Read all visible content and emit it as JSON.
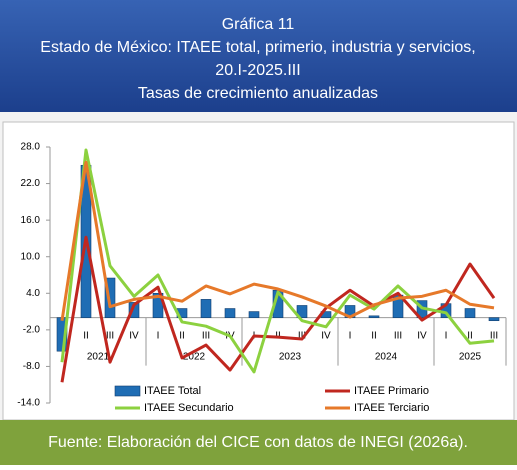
{
  "chart_data": {
    "type": "bar-line",
    "title": [
      "Gráfica 11",
      "Estado de México: ITAEE total, primerio, industria y servicios,",
      "20.I-2025.III",
      "Tasas de crecimiento anualizadas"
    ],
    "source": "Fuente: Elaboración del CICE con datos de INEGI (2026a).",
    "categories": [
      "I",
      "II",
      "III",
      "IV",
      "I",
      "II",
      "III",
      "IV",
      "I",
      "II",
      "III",
      "IV",
      "I",
      "II",
      "III",
      "IV",
      "I",
      "II",
      "III"
    ],
    "groups": [
      {
        "name": "2021",
        "count": 4
      },
      {
        "name": "2022",
        "count": 4
      },
      {
        "name": "2023",
        "count": 4
      },
      {
        "name": "2024",
        "count": 4
      },
      {
        "name": "2025",
        "count": 3
      }
    ],
    "series": [
      {
        "name": "ITAEE Total",
        "type": "bar",
        "color": "#1f6db4",
        "values": [
          -5.5,
          25,
          6.5,
          2.5,
          4.0,
          1.5,
          3.0,
          1.5,
          1.0,
          4.5,
          2.0,
          1.0,
          2.0,
          0.3,
          3.7,
          2.8,
          2.3,
          1.5,
          -0.5
        ]
      },
      {
        "name": "ITAEE Primario",
        "type": "line",
        "color": "#c0271f",
        "values": [
          -10.6,
          13.2,
          -7.3,
          2.1,
          5.0,
          -6.6,
          -4.5,
          -8.6,
          -3.0,
          -3.2,
          -3.5,
          1.6,
          4.5,
          1.9,
          4.0,
          -0.4,
          2.1,
          8.8,
          3.2
        ]
      },
      {
        "name": "ITAEE Secundario",
        "type": "line",
        "color": "#8cd13f",
        "values": [
          -7.3,
          27.5,
          8.5,
          3.5,
          7.0,
          -0.7,
          -1.4,
          -3.0,
          -8.9,
          4.2,
          -0.5,
          -1.5,
          3.7,
          1.4,
          5.2,
          1.6,
          0.8,
          -4.2,
          -3.8
        ]
      },
      {
        "name": "ITAEE Terciario",
        "type": "line",
        "color": "#e6792a",
        "values": [
          -0.5,
          25.5,
          1.8,
          3.0,
          3.5,
          2.7,
          5.2,
          3.9,
          5.5,
          4.7,
          3.4,
          1.9,
          0.1,
          2.1,
          3.2,
          3.5,
          4.5,
          2.2,
          1.6
        ]
      }
    ],
    "ylim": [
      -14,
      28
    ],
    "yticks": [
      {
        "value": 28,
        "label": "28.0"
      },
      {
        "value": 22,
        "label": "22.0"
      },
      {
        "value": 16,
        "label": "16.0"
      },
      {
        "value": 10,
        "label": "10.0"
      },
      {
        "value": 4,
        "label": "4.0"
      },
      {
        "value": -2,
        "label": "-2.0"
      },
      {
        "value": -8,
        "label": "-8.0"
      },
      {
        "value": -14,
        "label": "-14.0"
      }
    ],
    "legend": "bottom"
  }
}
